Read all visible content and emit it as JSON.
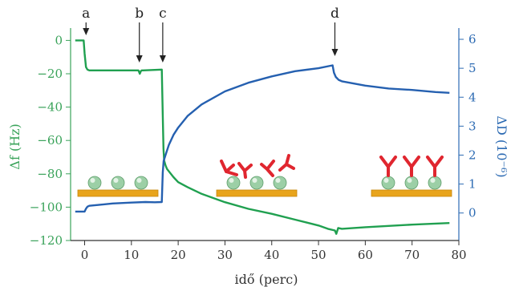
{
  "chart_data": {
    "type": "line",
    "xlabel": "idő (perc)",
    "ylabel_left": "Δf (Hz)",
    "ylabel_right": "ΔD (10⁻⁶)",
    "xlim": [
      -3,
      80
    ],
    "ylim_left": [
      -120,
      5
    ],
    "ylim_right": [
      -0.95,
      6.25
    ],
    "xticks": [
      0,
      10,
      20,
      30,
      40,
      50,
      60,
      70,
      80
    ],
    "yticks_left": [
      0,
      -20,
      -40,
      -60,
      -80,
      -100,
      -120
    ],
    "yticks_right": [
      0,
      1,
      2,
      3,
      4,
      5,
      6
    ],
    "grid": false,
    "colors": {
      "frequency": "#20a050",
      "dissipation": "#2560b0",
      "left_axis": "#3aa35a",
      "right_axis": "#2d6bb3"
    },
    "series": [
      {
        "axis": "left",
        "x": [
          -2,
          -0.2,
          0,
          0.3,
          0.6,
          1,
          2,
          4,
          8,
          11.5,
          11.8,
          12,
          12.2,
          12.5,
          14,
          16.5,
          16.7,
          16.85,
          17,
          17.3,
          17.6,
          18,
          19,
          20,
          22,
          25,
          30,
          35,
          40,
          45,
          50,
          52,
          53.5,
          53.8,
          54.2,
          55,
          60,
          70,
          78
        ],
        "y": [
          0,
          0,
          -8,
          -16,
          -17.5,
          -18,
          -18,
          -18,
          -18,
          -18,
          -20,
          -18.5,
          -18,
          -18,
          -17.8,
          -17.5,
          -45,
          -65,
          -72,
          -75,
          -77,
          -78.5,
          -82,
          -85,
          -88,
          -92,
          -97,
          -101,
          -104,
          -107.5,
          -111,
          -113,
          -114,
          -116,
          -112.5,
          -113,
          -112,
          -110.5,
          -109.5
        ]
      },
      {
        "axis": "right",
        "x": [
          -2,
          0,
          0.3,
          0.6,
          1,
          3,
          6,
          10,
          13,
          15,
          16.5,
          16.7,
          16.9,
          17.5,
          18,
          19,
          20,
          22,
          25,
          30,
          35,
          40,
          45,
          50,
          53,
          53.3,
          53.7,
          54.3,
          55,
          60,
          65,
          70,
          75,
          78
        ],
        "y": [
          0.05,
          0.05,
          0.15,
          0.22,
          0.25,
          0.28,
          0.33,
          0.36,
          0.38,
          0.37,
          0.38,
          1.4,
          1.8,
          2.1,
          2.35,
          2.7,
          2.95,
          3.35,
          3.75,
          4.2,
          4.5,
          4.72,
          4.9,
          5.0,
          5.1,
          4.85,
          4.7,
          4.6,
          4.55,
          4.4,
          4.3,
          4.25,
          4.18,
          4.15
        ]
      }
    ],
    "markers": [
      {
        "label": "a",
        "x": 0.3
      },
      {
        "label": "b",
        "x": 11.7
      },
      {
        "label": "c",
        "x": 16.7
      },
      {
        "label": "d",
        "x": 53.5
      }
    ]
  }
}
